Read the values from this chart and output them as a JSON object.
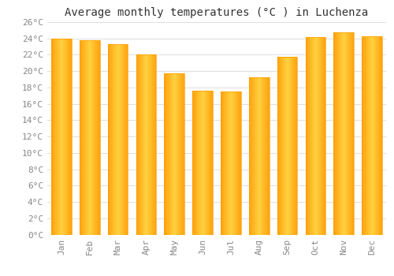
{
  "title": "Average monthly temperatures (°C ) in Luchenza",
  "months": [
    "Jan",
    "Feb",
    "Mar",
    "Apr",
    "May",
    "Jun",
    "Jul",
    "Aug",
    "Sep",
    "Oct",
    "Nov",
    "Dec"
  ],
  "values": [
    24.0,
    23.8,
    23.3,
    22.0,
    19.7,
    17.6,
    17.5,
    19.2,
    21.8,
    24.2,
    24.7,
    24.3
  ],
  "bar_color_center": "#FFD050",
  "bar_color_edge": "#FFA000",
  "background_color": "#FFFFFF",
  "grid_color": "#DDDDDD",
  "ytick_step": 2,
  "ymin": 0,
  "ymax": 26,
  "title_fontsize": 10,
  "tick_fontsize": 8,
  "font_family": "monospace",
  "tick_color": "#888888",
  "title_color": "#333333"
}
